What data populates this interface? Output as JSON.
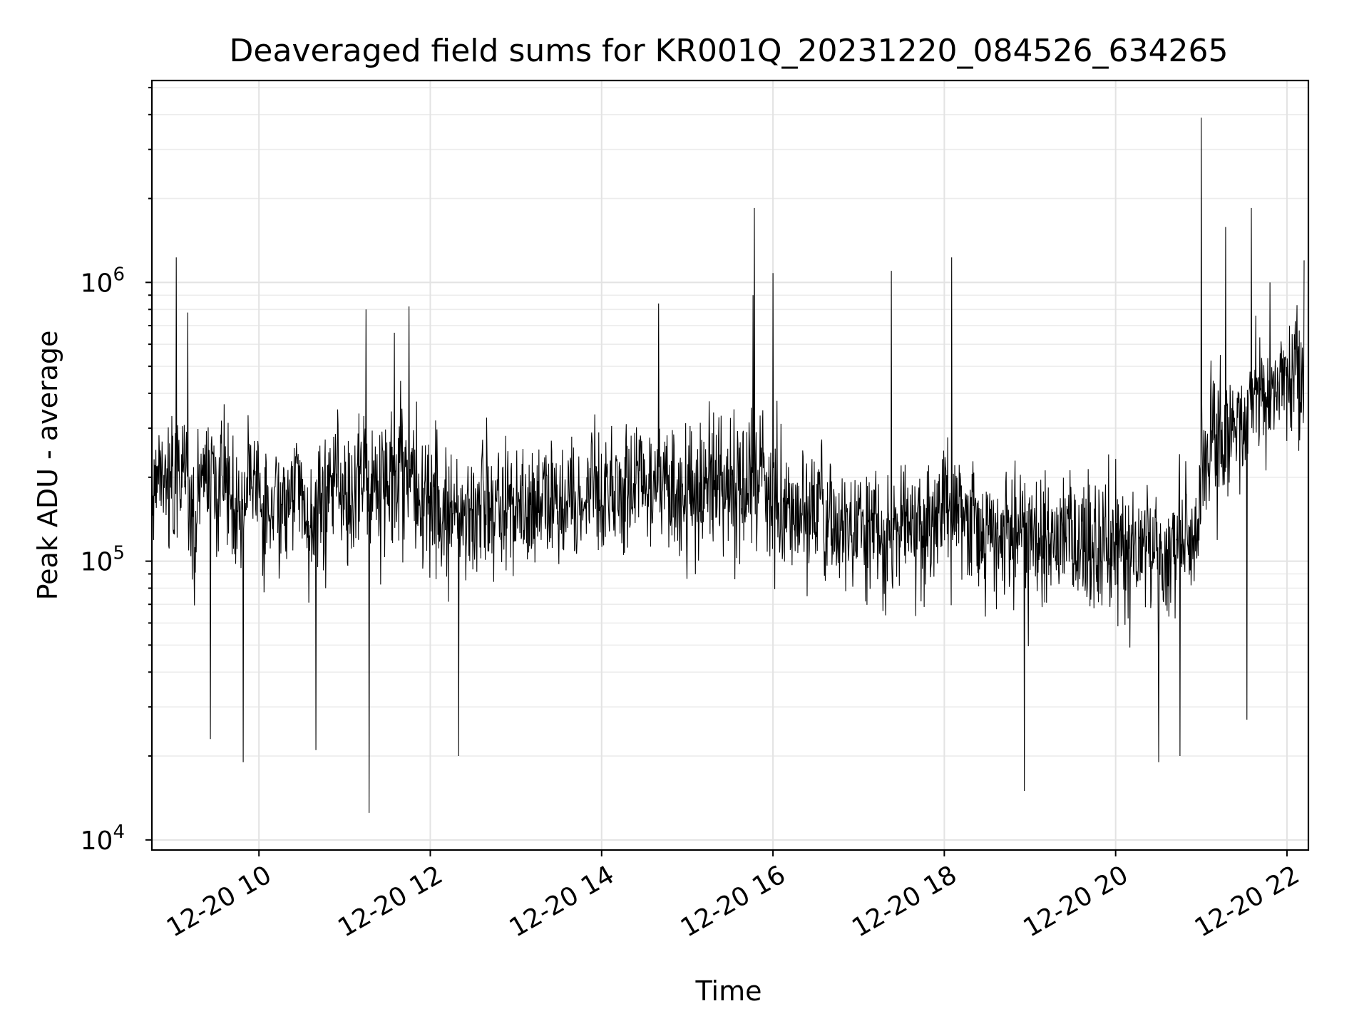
{
  "chart_data": {
    "type": "line",
    "title": "Deaveraged field sums for KR001Q_20231220_084526_634265",
    "xlabel": "Time",
    "ylabel": "Peak ADU - average",
    "y_scale": "log",
    "ylim": [
      9200,
      5300000
    ],
    "xlim": [
      "2023-12-20 08:45",
      "2023-12-20 22:15"
    ],
    "x_ticks": [
      "2023-12-20 10:00",
      "2023-12-20 12:00",
      "2023-12-20 14:00",
      "2023-12-20 16:00",
      "2023-12-20 18:00",
      "2023-12-20 20:00",
      "2023-12-20 22:00"
    ],
    "x_tick_labels": [
      "12-20 10",
      "12-20 12",
      "12-20 14",
      "12-20 16",
      "12-20 18",
      "12-20 20",
      "12-20 22"
    ],
    "y_ticks": [
      {
        "value": 10000,
        "base": "10",
        "exp": "4"
      },
      {
        "value": 100000,
        "base": "10",
        "exp": "5"
      },
      {
        "value": 1000000,
        "base": "10",
        "exp": "6"
      }
    ],
    "grid": true,
    "legend": "none",
    "line_color": "#000000",
    "series": [
      {
        "x": [
          "08:45",
          "08:55",
          "09:05",
          "09:15",
          "09:25",
          "09:35",
          "09:45",
          "09:55",
          "10:05",
          "10:15",
          "10:25",
          "10:35",
          "10:45",
          "10:55",
          "11:05",
          "11:15",
          "11:25",
          "11:35",
          "11:45",
          "11:55",
          "12:05",
          "12:15",
          "12:25",
          "12:35",
          "12:45",
          "12:55",
          "13:05",
          "13:15",
          "13:25",
          "13:35",
          "13:45",
          "13:55",
          "14:05",
          "14:15",
          "14:25",
          "14:35",
          "14:45",
          "14:55",
          "15:05",
          "15:15",
          "15:25",
          "15:35",
          "15:45",
          "15:55",
          "16:05",
          "16:15",
          "16:25",
          "16:35",
          "16:45",
          "16:55",
          "17:05",
          "17:15",
          "17:25",
          "17:35",
          "17:45",
          "17:55",
          "18:05",
          "18:15",
          "18:25",
          "18:35",
          "18:45",
          "18:55",
          "19:05",
          "19:15",
          "19:25",
          "19:35",
          "19:45",
          "19:55",
          "20:05",
          "20:15",
          "20:25",
          "20:35",
          "20:45",
          "20:55",
          "21:05",
          "21:15",
          "21:25",
          "21:35",
          "21:45",
          "21:55",
          "22:05",
          "22:12"
        ],
        "y": [
          210000,
          180000,
          220000,
          160000,
          190000,
          170000,
          150000,
          200000,
          140000,
          160000,
          180000,
          150000,
          170000,
          190000,
          160000,
          200000,
          180000,
          190000,
          210000,
          170000,
          160000,
          150000,
          140000,
          160000,
          150000,
          170000,
          160000,
          150000,
          180000,
          170000,
          160000,
          190000,
          180000,
          170000,
          200000,
          160000,
          190000,
          180000,
          170000,
          210000,
          180000,
          170000,
          190000,
          200000,
          160000,
          150000,
          140000,
          150000,
          130000,
          140000,
          130000,
          120000,
          140000,
          130000,
          120000,
          130000,
          150000,
          140000,
          120000,
          110000,
          120000,
          130000,
          110000,
          120000,
          130000,
          120000,
          110000,
          130000,
          120000,
          110000,
          120000,
          100000,
          110000,
          120000,
          260000,
          300000,
          330000,
          380000,
          420000,
          450000,
          480000,
          470000
        ],
        "spikes": [
          {
            "x": "09:02",
            "y": 1230000
          },
          {
            "x": "09:10",
            "y": 780000
          },
          {
            "x": "09:26",
            "y": 23000
          },
          {
            "x": "09:49",
            "y": 19000
          },
          {
            "x": "10:40",
            "y": 21000
          },
          {
            "x": "11:15",
            "y": 800000
          },
          {
            "x": "11:17",
            "y": 12500
          },
          {
            "x": "11:35",
            "y": 660000
          },
          {
            "x": "11:45",
            "y": 820000
          },
          {
            "x": "12:20",
            "y": 20000
          },
          {
            "x": "14:40",
            "y": 840000
          },
          {
            "x": "15:47",
            "y": 1850000
          },
          {
            "x": "15:46",
            "y": 900000
          },
          {
            "x": "16:00",
            "y": 1080000
          },
          {
            "x": "17:23",
            "y": 1100000
          },
          {
            "x": "18:05",
            "y": 1230000
          },
          {
            "x": "18:56",
            "y": 15000
          },
          {
            "x": "20:30",
            "y": 19000
          },
          {
            "x": "20:45",
            "y": 20000
          },
          {
            "x": "21:00",
            "y": 3900000
          },
          {
            "x": "21:17",
            "y": 1580000
          },
          {
            "x": "21:32",
            "y": 27000
          },
          {
            "x": "21:35",
            "y": 1850000
          },
          {
            "x": "21:48",
            "y": 1000000
          },
          {
            "x": "22:12",
            "y": 1200000
          }
        ]
      }
    ]
  }
}
